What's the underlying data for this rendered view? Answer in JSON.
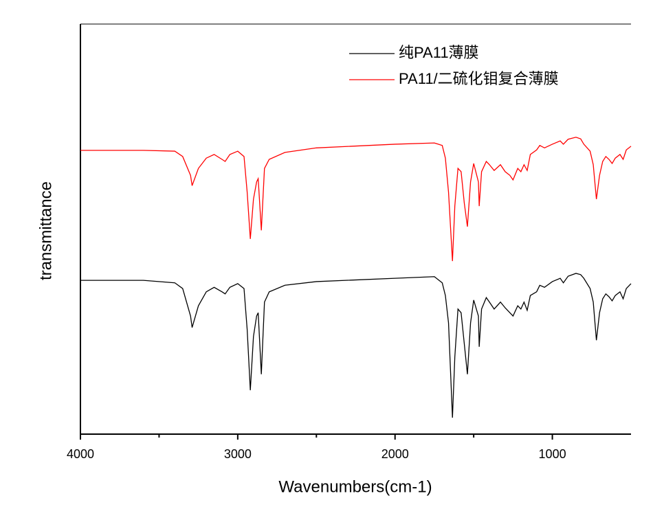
{
  "chart_data": {
    "type": "line",
    "x_label": "Wavenumbers(cm-1)",
    "y_label": "transmittance",
    "x": [
      4000,
      3600,
      3400,
      3350,
      3300,
      3290,
      3250,
      3200,
      3150,
      3100,
      3080,
      3050,
      3000,
      2960,
      2940,
      2920,
      2900,
      2880,
      2870,
      2850,
      2830,
      2800,
      2700,
      2500,
      2000,
      1750,
      1700,
      1680,
      1660,
      1635,
      1620,
      1600,
      1580,
      1560,
      1540,
      1520,
      1500,
      1470,
      1465,
      1450,
      1420,
      1400,
      1370,
      1330,
      1300,
      1270,
      1250,
      1220,
      1200,
      1180,
      1160,
      1140,
      1100,
      1080,
      1050,
      1000,
      950,
      930,
      900,
      850,
      820,
      800,
      760,
      740,
      720,
      700,
      680,
      660,
      640,
      620,
      600,
      570,
      550,
      530,
      500
    ],
    "series": [
      {
        "name": "纯PA11薄膜",
        "color": "#000000",
        "values": [
          37.5,
          37.5,
          36.9,
          35.5,
          28.8,
          26.0,
          31.3,
          34.7,
          35.8,
          34.7,
          34.2,
          35.8,
          36.7,
          35.5,
          25.5,
          10.7,
          23.8,
          28.8,
          29.6,
          14.6,
          32.2,
          34.7,
          36.3,
          37.2,
          38.0,
          38.4,
          36.9,
          33.8,
          27.1,
          4.0,
          18.8,
          30.5,
          29.6,
          22.1,
          14.6,
          27.1,
          32.7,
          28.8,
          21.3,
          30.5,
          33.3,
          32.2,
          30.5,
          32.2,
          30.8,
          29.6,
          28.8,
          31.3,
          30.5,
          32.2,
          30.2,
          33.8,
          34.7,
          36.3,
          35.8,
          37.2,
          38.0,
          36.9,
          38.5,
          39.2,
          38.9,
          38.0,
          35.5,
          32.2,
          22.9,
          29.6,
          33.0,
          34.2,
          33.5,
          32.5,
          33.8,
          34.7,
          33.0,
          35.5,
          36.7
        ]
      },
      {
        "name": "PA11/二硫化钼复合薄膜",
        "color": "#ff0000",
        "values": [
          69.2,
          69.2,
          69.0,
          67.7,
          63.1,
          60.6,
          64.8,
          67.3,
          68.2,
          67.0,
          66.5,
          68.2,
          69.0,
          67.7,
          59.0,
          47.6,
          57.3,
          61.5,
          62.3,
          49.7,
          64.8,
          67.0,
          68.7,
          69.8,
          70.7,
          71.0,
          70.4,
          67.3,
          59.0,
          42.2,
          55.6,
          64.8,
          64.0,
          56.4,
          50.6,
          61.5,
          66.0,
          61.5,
          55.6,
          64.0,
          66.5,
          65.7,
          64.3,
          65.7,
          64.0,
          63.1,
          62.0,
          64.8,
          64.0,
          65.7,
          64.3,
          68.2,
          69.3,
          70.4,
          69.8,
          70.7,
          71.5,
          70.7,
          71.9,
          72.4,
          72.0,
          70.7,
          69.0,
          65.7,
          57.3,
          63.1,
          66.5,
          67.7,
          67.0,
          66.0,
          67.3,
          68.2,
          67.0,
          69.3,
          70.2
        ]
      }
    ],
    "xlim": [
      4000,
      500
    ],
    "xticks": [
      4000,
      3000,
      2000,
      1000
    ],
    "xminorticks": [
      3500,
      2500,
      1500
    ],
    "ylim": [
      0,
      100
    ],
    "legend": "top-right"
  }
}
